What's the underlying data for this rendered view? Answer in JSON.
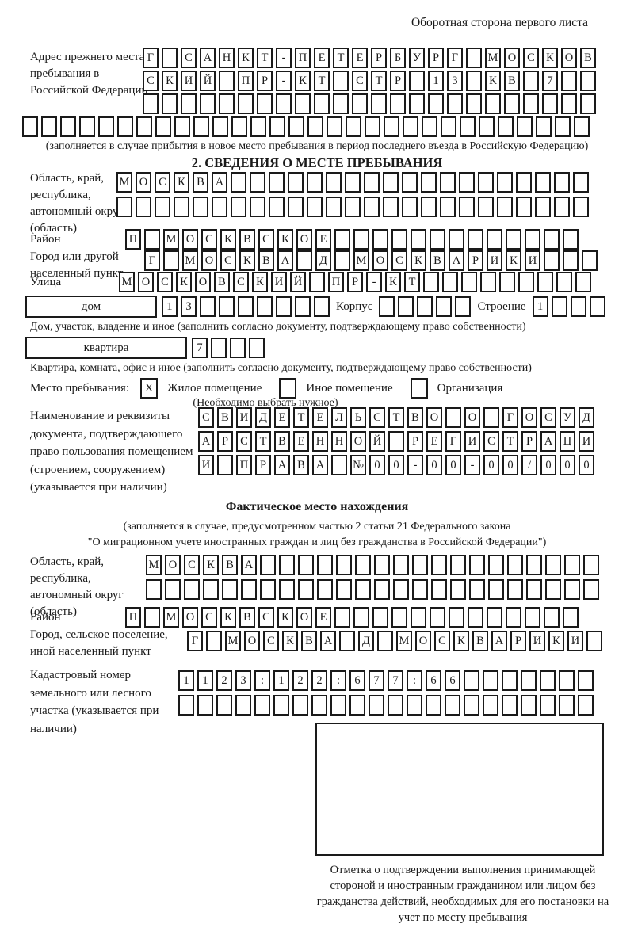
{
  "header": {
    "title": "Оборотная сторона первого листа"
  },
  "prev_address": {
    "label": "Адрес прежнего места пребывания в Российской Федерации",
    "row1": {
      "chars": "Г САНКТ-ПЕТЕРБУРГ МОСКОВ",
      "len": 24
    },
    "row2": {
      "chars": "СКИЙ ПР-КТ СТР 13 КВ 7",
      "len": 24
    },
    "row3": {
      "chars": "",
      "len": 24
    },
    "row4": {
      "chars": "",
      "len": 30
    },
    "note": "(заполняется в случае прибытия в новое место пребывания в период последнего въезда в Российскую Федерацию)"
  },
  "section2": {
    "heading": "2. СВЕДЕНИЯ О МЕСТЕ ПРЕБЫВАНИЯ",
    "oblast": {
      "label": "Область, край, республика, автономный округ (область)",
      "row1": {
        "chars": "МОСКВА",
        "len": 25
      },
      "row2": {
        "chars": "",
        "len": 25
      }
    },
    "raion": {
      "label": "Район",
      "row": {
        "chars": "П МОСКВСКОЕ",
        "len": 24
      }
    },
    "gorod": {
      "label": "Город или другой населенный пункт",
      "row": {
        "chars": "Г МОСКВА Д МОСКВАРИКИ",
        "len": 24
      }
    },
    "ulitsa": {
      "label": "Улица",
      "row": {
        "chars": "МОСКОВСКИЙ ПР-КТ",
        "len": 25
      }
    },
    "dom": {
      "box_label": "дом",
      "cells": {
        "chars": "13",
        "len": 9
      },
      "korpus_label": "Корпус",
      "korpus_cells": {
        "chars": "",
        "len": 5
      },
      "stroenie_label": "Строение",
      "stroenie_cells": {
        "chars": "1",
        "len": 4
      },
      "note": "Дом, участок, владение и иное (заполнить согласно документу, подтверждающему право собственности)"
    },
    "kvartira": {
      "box_label": "квартира",
      "cells": {
        "chars": "7",
        "len": 4
      },
      "note": "Квартира, комната, офис и иное (заполнить согласно документу, подтверждающему право собственности)"
    },
    "mesto": {
      "label": "Место пребывания:",
      "options": [
        {
          "label": "Жилое помещение",
          "mark": "X"
        },
        {
          "label": "Иное помещение",
          "mark": ""
        },
        {
          "label": "Организация",
          "mark": ""
        }
      ],
      "note": "(Необходимо выбрать нужное)"
    },
    "doc": {
      "label": "Наименование и реквизиты документа, подтверждающего право пользования помещением (строением, сооружением) (указывается при наличии)",
      "row1": {
        "chars": "СВИДЕТЕЛЬСТВО О ГОСУД",
        "len": 21
      },
      "row2": {
        "chars": "АРСТВЕННОЙ РЕГИСТРАЦИ",
        "len": 21
      },
      "row3": {
        "chars": "И ПРАВА №00-00-00/000",
        "len": 21
      }
    }
  },
  "fact": {
    "heading": "Фактическое место нахождения",
    "note_line1": "(заполняется в случае, предусмотренном частью 2 статьи 21 Федерального закона",
    "note_line2": "\"О миграционном учете иностранных граждан и лиц без гражданства в Российской Федерации\")",
    "oblast": {
      "label": "Область, край, республика, автономный округ (область)",
      "row1": {
        "chars": "МОСКВА",
        "len": 24
      },
      "row2": {
        "chars": "",
        "len": 24
      }
    },
    "raion": {
      "label": "Район",
      "row": {
        "chars": "П МОСКВСКОЕ",
        "len": 24
      }
    },
    "gorod": {
      "label": "Город, сельское поселение, иной населенный пункт",
      "row": {
        "chars": "Г МОСКВА Д МОСКВАРИКИ",
        "len": 22
      }
    },
    "kadastr": {
      "label": "Кадастровый номер земельного или лесного участка (указывается при наличии)",
      "row1": {
        "chars": "1123:122:677:66",
        "len": 22
      },
      "row2": {
        "chars": "",
        "len": 22
      }
    },
    "stamp_caption": "Отметка о подтверждении выполнения принимающей стороной и иностранным гражданином или лицом без гражданства действий, необходимых для его постановки на учет по месту пребывания"
  }
}
